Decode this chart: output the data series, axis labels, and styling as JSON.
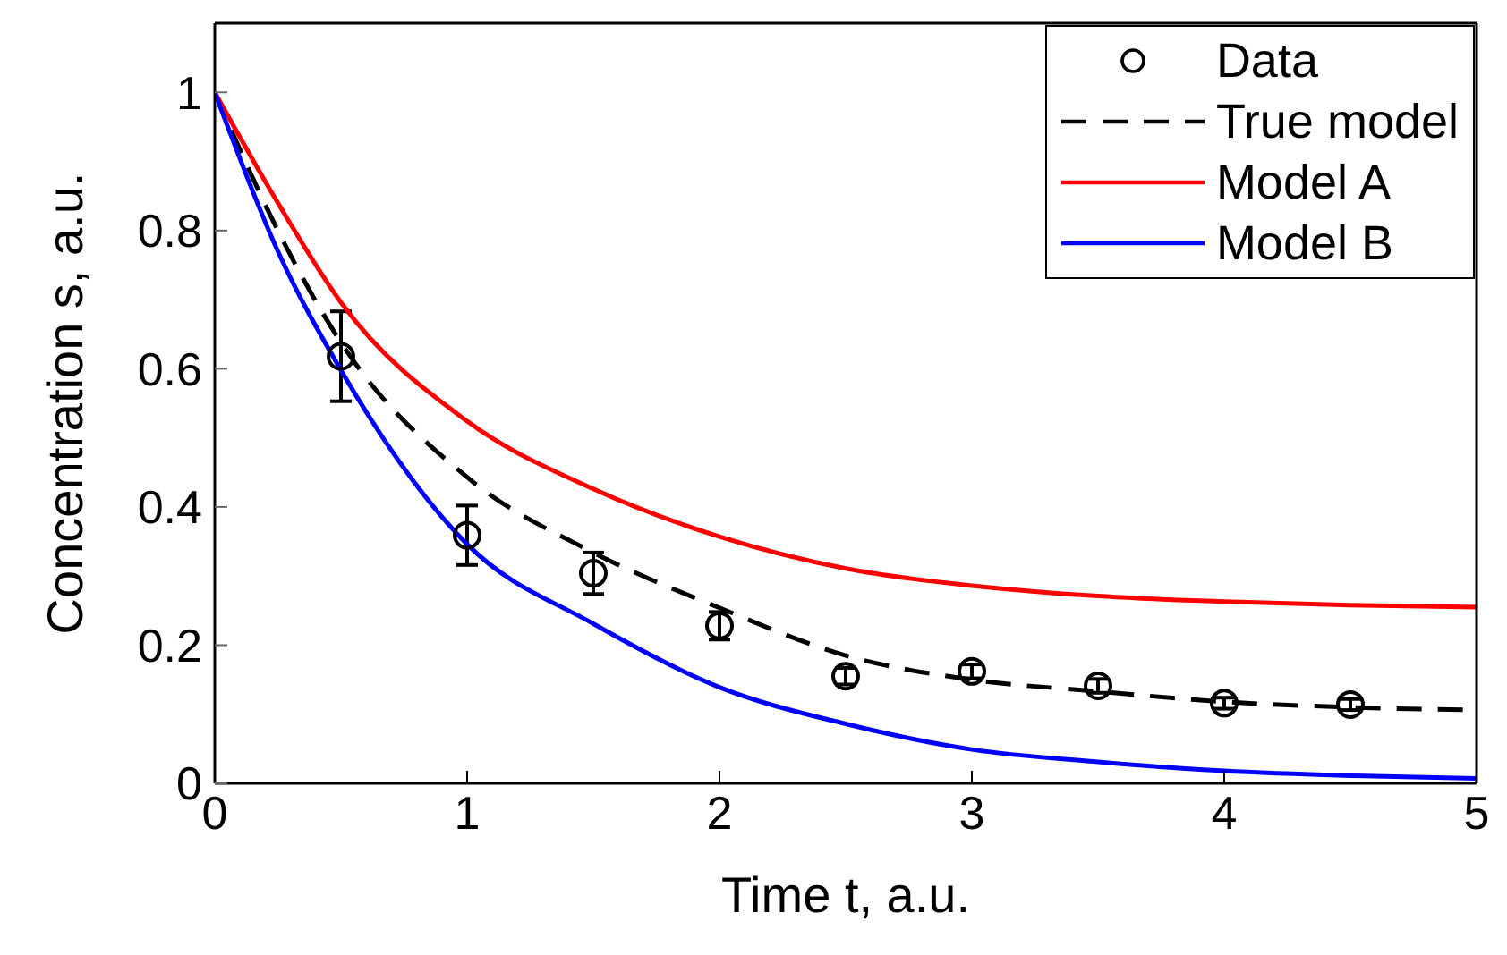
{
  "chart_data": {
    "type": "line",
    "xlabel": "Time  t, a.u.",
    "ylabel": "Concentration  s, a.u.",
    "xlim": [
      0,
      5
    ],
    "xticks": [
      0,
      1,
      2,
      3,
      4,
      5
    ],
    "ylim": [
      0,
      1.1
    ],
    "yticks": [
      0,
      0.2,
      0.4,
      0.6,
      0.8,
      1
    ],
    "legend": "top right",
    "series": [
      {
        "name": "Data",
        "type": "scatter",
        "marker": "circle",
        "color": "#000000",
        "x": [
          0.5,
          1,
          1.5,
          2,
          2.5,
          3,
          3.5,
          4,
          4.5
        ],
        "values": [
          0.618,
          0.359,
          0.304,
          0.228,
          0.155,
          0.162,
          0.141,
          0.116,
          0.114
        ],
        "errors": [
          0.065,
          0.043,
          0.03,
          0.02,
          0.012,
          0.01,
          0.01,
          0.008,
          0.008
        ]
      },
      {
        "name": "True model",
        "marker": "none",
        "line_style": "dashed",
        "color": "#000000",
        "x": [
          0,
          0.25,
          0.5,
          1,
          1.5,
          2,
          2.5,
          3,
          3.5,
          4,
          4.5,
          5
        ],
        "values": [
          1,
          0.8,
          0.638,
          0.443,
          0.334,
          0.254,
          0.185,
          0.15,
          0.133,
          0.118,
          0.11,
          0.106
        ]
      },
      {
        "name": "Model A",
        "marker": "none",
        "line_style": "solid",
        "color": "#ff0000",
        "x": [
          0,
          0.25,
          0.5,
          1,
          1.5,
          2,
          2.5,
          3,
          3.5,
          4,
          4.5,
          5
        ],
        "values": [
          1,
          0.84,
          0.696,
          0.524,
          0.426,
          0.357,
          0.311,
          0.286,
          0.271,
          0.263,
          0.258,
          0.255
        ]
      },
      {
        "name": "Model B",
        "marker": "none",
        "line_style": "solid",
        "color": "#0000ff",
        "x": [
          0,
          0.25,
          0.5,
          1,
          1.5,
          2,
          2.5,
          3,
          3.5,
          4,
          4.5,
          5
        ],
        "values": [
          1,
          0.77,
          0.598,
          0.346,
          0.231,
          0.139,
          0.086,
          0.049,
          0.031,
          0.018,
          0.011,
          0.007
        ]
      }
    ]
  }
}
